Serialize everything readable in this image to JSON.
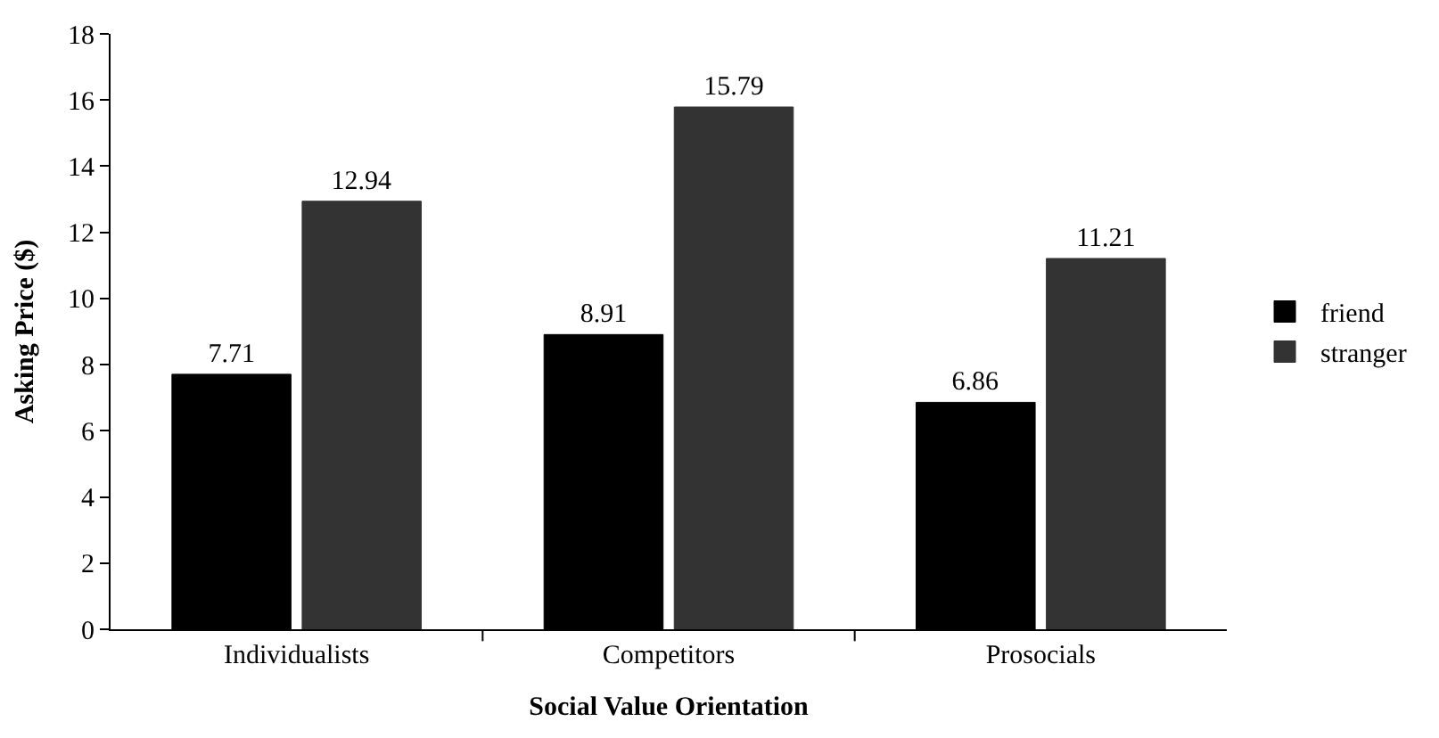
{
  "chart_data": {
    "type": "bar",
    "xlabel": "Social Value Orientation",
    "ylabel": "Asking Price ($)",
    "categories": [
      "Individualists",
      "Competitors",
      "Prosocials"
    ],
    "series": [
      {
        "name": "friend",
        "color": "#000000",
        "values": [
          7.71,
          8.91,
          6.86
        ]
      },
      {
        "name": "stranger",
        "color": "#333333",
        "values": [
          12.94,
          15.79,
          11.21
        ]
      }
    ],
    "ylim": [
      0,
      18
    ],
    "yticks": [
      0,
      2,
      4,
      6,
      8,
      10,
      12,
      14,
      16,
      18
    ],
    "legend": "right",
    "data_labels": true
  }
}
